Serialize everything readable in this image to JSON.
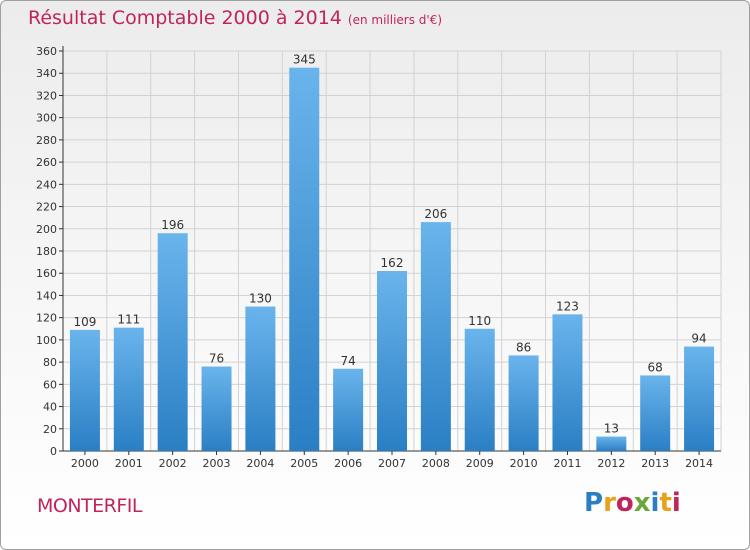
{
  "chart_data": {
    "type": "bar",
    "title": "Résultat Comptable 2000 à 2014",
    "subtitle": "(en milliers d'€)",
    "categories": [
      "2000",
      "2001",
      "2002",
      "2003",
      "2004",
      "2005",
      "2006",
      "2007",
      "2008",
      "2009",
      "2010",
      "2011",
      "2012",
      "2013",
      "2014"
    ],
    "values": [
      109,
      111,
      196,
      76,
      130,
      345,
      74,
      162,
      206,
      110,
      86,
      123,
      13,
      68,
      94
    ],
    "ylim": [
      0,
      360
    ],
    "ytick_step": 20,
    "grid": true,
    "xlabel": "",
    "ylabel": "",
    "bar_color_light": "#6ab4ec",
    "bar_color_dark": "#2a7fc4"
  },
  "footer": {
    "city": "MONTERFIL",
    "logo_text": "Proxiti",
    "logo_colors": [
      "#2a7fc4",
      "#e8a21a",
      "#c0245c",
      "#6aa83a",
      "#2a7fc4",
      "#e8a21a",
      "#c0245c"
    ]
  }
}
